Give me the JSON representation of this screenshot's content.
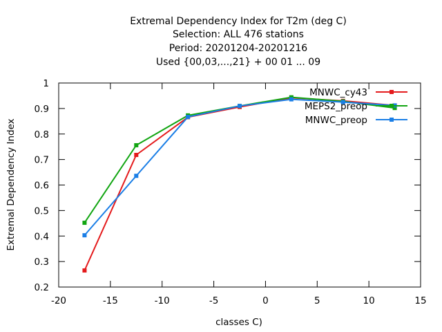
{
  "chart_data": {
    "type": "line",
    "title_lines": [
      "Extremal Dependency Index  for T2m (deg C)",
      "Selection: ALL    476 stations",
      "Period: 20201204-20201216",
      "Used {00,03,...,21} + 00 01 ... 09"
    ],
    "xlabel": "classes C)",
    "ylabel": "Extremal Dependency Index",
    "xlim": [
      -20,
      15
    ],
    "ylim": [
      0.2,
      1.0
    ],
    "xticks": [
      -20,
      -15,
      -10,
      -5,
      0,
      5,
      10,
      15
    ],
    "yticks": [
      0.2,
      0.3,
      0.4,
      0.5,
      0.6,
      0.7,
      0.8,
      0.9,
      1
    ],
    "xtick_labels": [
      "-20",
      "-15",
      "-10",
      "-5",
      "0",
      "5",
      "10",
      "15"
    ],
    "ytick_labels": [
      "0.2",
      "0.3",
      "0.4",
      "0.5",
      "0.6",
      "0.7",
      "0.8",
      "0.9",
      "1"
    ],
    "legend_position": "top-right",
    "grid": false,
    "series": [
      {
        "name": "MNWC_cy43",
        "color": "#e41a1c",
        "x": [
          -17.5,
          -12.5,
          -7.5,
          -2.5,
          2.5,
          7.5,
          12.5
        ],
        "y": [
          0.265,
          0.718,
          0.866,
          0.906,
          0.942,
          0.93,
          0.912
        ]
      },
      {
        "name": "MEPS2_preop",
        "color": "#11a511",
        "x": [
          -17.5,
          -12.5,
          -7.5,
          -2.5,
          2.5,
          7.5,
          12.5
        ],
        "y": [
          0.452,
          0.756,
          0.873,
          0.91,
          0.944,
          0.928,
          0.902
        ]
      },
      {
        "name": "MNWC_preop",
        "color": "#1a7ee6",
        "x": [
          -17.5,
          -12.5,
          -7.5,
          -2.5,
          2.5,
          7.5,
          12.5
        ],
        "y": [
          0.403,
          0.636,
          0.867,
          0.91,
          0.936,
          0.925,
          0.912
        ]
      }
    ]
  }
}
